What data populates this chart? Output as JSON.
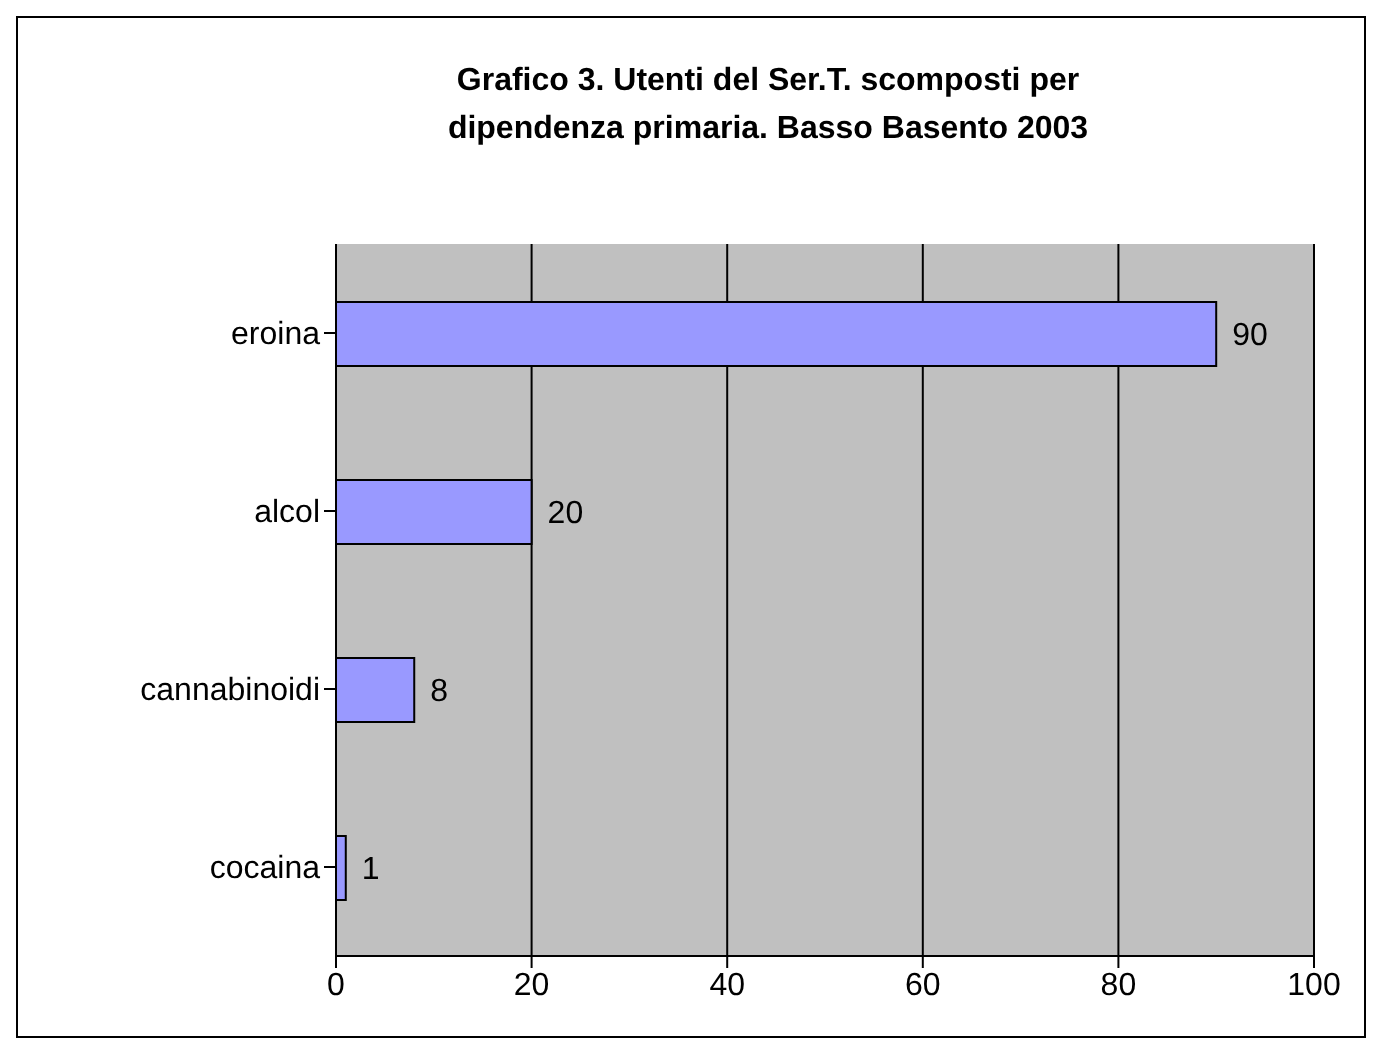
{
  "chart_data": {
    "type": "bar",
    "orientation": "horizontal",
    "title": "Grafico 3. Utenti del Ser.T. scomposti per dipendenza primaria. Basso Basento  2003",
    "categories": [
      "eroina",
      "alcol",
      "cannabinoidi",
      "cocaina"
    ],
    "values": [
      90,
      20,
      8,
      1
    ],
    "color": "#9999ff",
    "xlim": [
      0,
      100
    ],
    "xticks": [
      0,
      20,
      40,
      60,
      80,
      100
    ],
    "grid": "x",
    "data_labels": true
  }
}
